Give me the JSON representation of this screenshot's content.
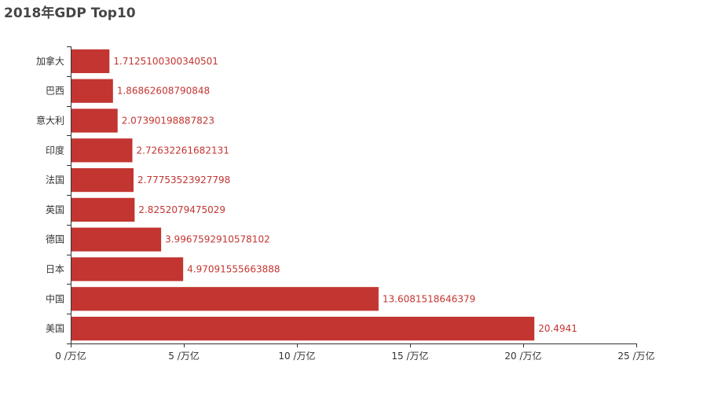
{
  "chart_data": {
    "type": "bar",
    "orientation": "horizontal",
    "title": "2018年GDP Top10",
    "categories": [
      "美国",
      "中国",
      "日本",
      "德国",
      "英国",
      "法国",
      "印度",
      "意大利",
      "巴西",
      "加拿大"
    ],
    "values": [
      20.4941,
      13.6081518646379,
      4.97091555663888,
      3.9967592910578102,
      2.8252079475029,
      2.77753523927798,
      2.72632261682131,
      2.07390198887823,
      1.86862608790848,
      1.7125100300340501
    ],
    "value_labels": [
      "20.4941",
      "13.6081518646379",
      "4.97091555663888",
      "3.9967592910578102",
      "2.8252079475029",
      "2.77753523927798",
      "2.72632261682131",
      "2.07390198887823",
      "1.86862608790848",
      "1.7125100300340501"
    ],
    "x_ticks": [
      0,
      5,
      10,
      15,
      20,
      25
    ],
    "x_tick_labels": [
      "0 /万亿",
      "5 /万亿",
      "10 /万亿",
      "15 /万亿",
      "20 /万亿",
      "25 /万亿"
    ],
    "xlim": [
      0,
      25
    ],
    "grid": false,
    "legend": "none",
    "colors": {
      "bar": "#c23531",
      "label": "#c23531",
      "axis": "#333333",
      "title": "#464646"
    }
  }
}
